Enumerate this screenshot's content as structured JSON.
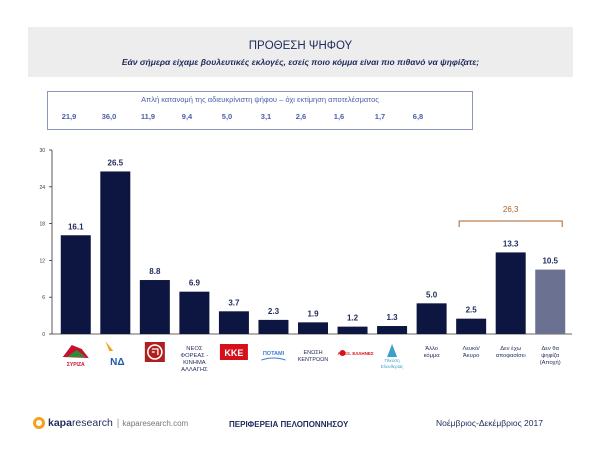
{
  "header": {
    "title": "ΠΡΟΘΕΣΗ ΨΗΦΟΥ",
    "subtitle": "Εάν σήμερα είχαμε βουλευτικές εκλογές, εσείς ποιο κόμμα είναι πιο πιθανό να ψηφίζατε;"
  },
  "raw_box": {
    "title": "Απλή κατανομή της αδιευκρίνιστη ψήφου – όχι εκτίμηση αποτελέσματος",
    "values": [
      "21,9",
      "36,0",
      "11,9",
      "9,4",
      "5,0",
      "3,1",
      "2,6",
      "1,6",
      "1,7",
      "6,8"
    ]
  },
  "bracket_label": "26,3",
  "footer": {
    "logo_kapa": "kapa",
    "logo_research": "research",
    "logo_sep": "|",
    "logo_url": "kaparesearch.com",
    "region": "ΠΕΡΙΦΕΡΕΙΑ ΠΕΛΟΠΟΝΝΗΣΟΥ",
    "date": "Νοέμβριος-Δεκέμβριος 2017"
  },
  "logos": {
    "syriza": "ΣΥΡΙΖΑ",
    "nd": "ΝΔ",
    "kke": "ΚΚΕ",
    "potami": "ΠΟΤΑΜΙ",
    "enosi_line1": "ΕΝΩΣΗ",
    "enosi_line2": "ΚΕΝΤΡΩΩΝ",
    "anel": "ΑΝΕΞ. ΕΛΛΗΝΕΣ",
    "eleftheria_line1": "Πλεύση",
    "eleftheria_line2": "Ελευθερίας"
  },
  "colors": {
    "bar": "#0d1640",
    "bar_undecided": "#6b7190",
    "bracket": "#a9612a",
    "text": "#1f2a5c",
    "raw": "#4a5fa8"
  },
  "chart_data": {
    "type": "bar",
    "ylim": [
      0,
      30
    ],
    "yticks": [
      0,
      6,
      12,
      18,
      24,
      30
    ],
    "categories": [
      "ΣΥΡΙΖΑ",
      "ΝΔ",
      "Χρυσή Αυγή",
      "ΝΕΟΣ ΦΟΡΕΑΣ - ΚΙΝΗΜΑ ΑΛΛΑΓΗΣ",
      "ΚΚΕ",
      "ΠΟΤΑΜΙ",
      "ΕΝΩΣΗ ΚΕΝΤΡΩΩΝ",
      "ΑΝΕΞ. ΕΛΛΗΝΕΣ",
      "Πλεύση Ελευθερίας",
      "Άλλο κόμμα",
      "Λευκό/ Άκυρο",
      "Δεν έχω αποφασίσει",
      "Δεν θα ψηφίζα (Αποχή)"
    ],
    "category_labels": [
      "",
      "",
      "",
      "ΝΕΟΣ ΦΟΡΕΑΣ - ΚΙΝΗΜΑ ΑΛΛΑΓΗΣ",
      "",
      "",
      "",
      "",
      "",
      "Άλλο κόμμα",
      "Λευκό/ Άκυρο",
      "Δεν έχω αποφασίσει",
      "Δεν θα ψηφίζα (Αποχή)"
    ],
    "values": [
      16.1,
      26.5,
      8.8,
      6.9,
      3.7,
      2.3,
      1.9,
      1.2,
      1.3,
      5.0,
      2.5,
      13.3,
      10.5
    ],
    "value_labels": [
      "16.1",
      "26.5",
      "8.8",
      "6.9",
      "3.7",
      "2.3",
      "1.9",
      "1.2",
      "1.3",
      "5.0",
      "2.5",
      "13.3",
      "10.5"
    ]
  }
}
